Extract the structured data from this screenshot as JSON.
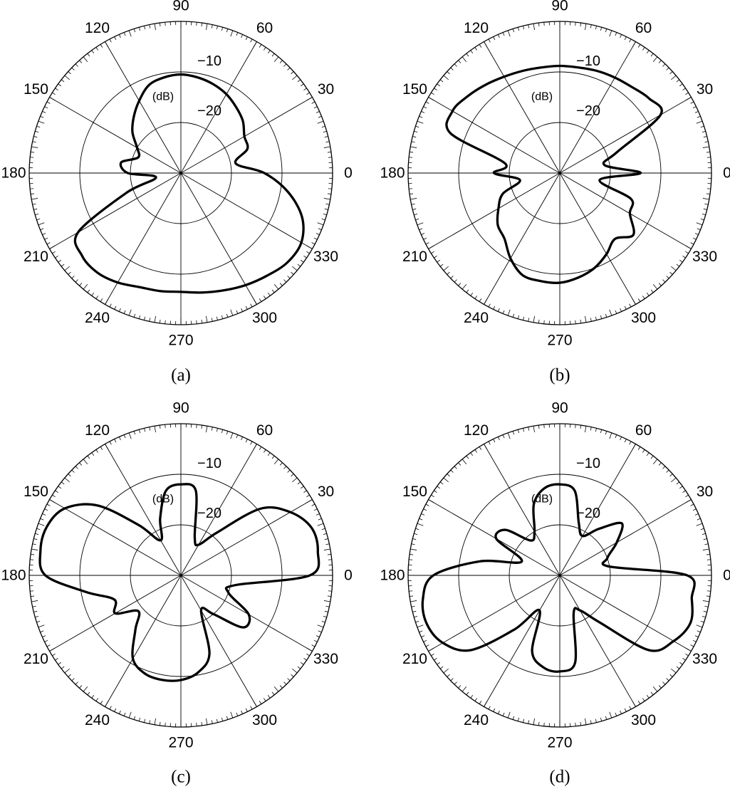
{
  "figure": {
    "angle_labels": [
      "0",
      "30",
      "60",
      "90",
      "120",
      "150",
      "180",
      "210",
      "240",
      "270",
      "300",
      "330"
    ],
    "unit_label": "(dB)",
    "db_tick_labels": [
      "−10",
      "−20"
    ]
  },
  "chart_data": [
    {
      "type": "polar-line",
      "caption": "(a)",
      "angle_unit": "degrees",
      "r_unit": "dB",
      "r_range": [
        -30,
        0
      ],
      "r_gridlines": [
        -20,
        -10,
        0
      ],
      "theta_ticks": [
        0,
        30,
        60,
        90,
        120,
        150,
        180,
        210,
        240,
        270,
        300,
        330
      ],
      "pattern": {
        "theta": [
          0,
          10,
          20,
          30,
          40,
          50,
          60,
          70,
          80,
          90,
          100,
          110,
          120,
          130,
          140,
          150,
          160,
          170,
          180,
          190,
          200,
          210,
          220,
          230,
          240,
          250,
          260,
          270,
          280,
          290,
          300,
          310,
          320,
          330,
          340,
          350
        ],
        "r": [
          -13.5,
          -19,
          -16,
          -15.5,
          -14,
          -13,
          -12,
          -11.3,
          -10.8,
          -10.5,
          -10.8,
          -11.5,
          -13.5,
          -15.5,
          -17.5,
          -20,
          -21,
          -18,
          -19.5,
          -25,
          -18.5,
          -6.5,
          -4.5,
          -4.3,
          -5,
          -6,
          -6.3,
          -6.5,
          -6,
          -5.3,
          -4.4,
          -3.5,
          -2.5,
          -2.5,
          -4.5,
          -8.5
        ]
      }
    },
    {
      "type": "polar-line",
      "caption": "(b)",
      "angle_unit": "degrees",
      "r_unit": "dB",
      "r_range": [
        -30,
        0
      ],
      "r_gridlines": [
        -20,
        -10,
        0
      ],
      "theta_ticks": [
        0,
        30,
        60,
        90,
        120,
        150,
        180,
        210,
        240,
        270,
        300,
        330
      ],
      "pattern": {
        "theta": [
          0,
          10,
          20,
          30,
          40,
          50,
          60,
          70,
          80,
          90,
          100,
          110,
          120,
          130,
          140,
          150,
          160,
          170,
          180,
          190,
          200,
          210,
          220,
          230,
          240,
          250,
          260,
          270,
          280,
          290,
          300,
          310,
          320,
          330,
          340,
          350
        ],
        "r": [
          -14,
          -21,
          -18,
          -7,
          -7,
          -7.8,
          -8.2,
          -8.5,
          -8.8,
          -8.8,
          -8.8,
          -8.5,
          -8,
          -7.2,
          -6.3,
          -5.5,
          -7,
          -19,
          -17,
          -22,
          -18,
          -16,
          -14,
          -13,
          -10.5,
          -8.5,
          -8.3,
          -8.3,
          -9,
          -10,
          -11.5,
          -13,
          -11,
          -14,
          -15,
          -22
        ]
      }
    },
    {
      "type": "polar-line",
      "caption": "(c)",
      "angle_unit": "degrees",
      "r_unit": "dB",
      "r_range": [
        -30,
        0
      ],
      "r_gridlines": [
        -20,
        -10,
        0
      ],
      "theta_ticks": [
        0,
        30,
        60,
        90,
        120,
        150,
        180,
        210,
        240,
        270,
        300,
        330
      ],
      "pattern": {
        "theta": [
          0,
          10,
          20,
          30,
          40,
          50,
          60,
          70,
          80,
          90,
          100,
          110,
          120,
          130,
          140,
          150,
          160,
          170,
          180,
          190,
          200,
          210,
          220,
          230,
          240,
          250,
          260,
          270,
          280,
          290,
          300,
          310,
          320,
          330,
          340,
          350
        ],
        "r": [
          -4.5,
          -2.5,
          -2.5,
          -5,
          -9.5,
          -19,
          -23,
          -22,
          -13,
          -12,
          -13,
          -18,
          -22,
          -17,
          -8.5,
          -3.5,
          -1.8,
          -1.8,
          -3.2,
          -11,
          -16,
          -15,
          -19,
          -16,
          -11,
          -9.3,
          -9,
          -9.3,
          -10.5,
          -13.5,
          -22,
          -20,
          -14,
          -14.5,
          -20,
          -19
        ]
      }
    },
    {
      "type": "polar-line",
      "caption": "(d)",
      "angle_unit": "degrees",
      "r_unit": "dB",
      "r_range": [
        -30,
        0
      ],
      "r_gridlines": [
        -20,
        -10,
        0
      ],
      "theta_ticks": [
        0,
        30,
        60,
        90,
        120,
        150,
        180,
        210,
        240,
        270,
        300,
        330
      ],
      "pattern": {
        "theta": [
          0,
          10,
          20,
          30,
          40,
          50,
          60,
          70,
          80,
          90,
          100,
          110,
          120,
          130,
          140,
          150,
          160,
          170,
          180,
          190,
          200,
          210,
          220,
          230,
          240,
          250,
          260,
          270,
          280,
          290,
          300,
          310,
          320,
          330,
          340,
          350
        ],
        "r": [
          -4.8,
          -20,
          -20,
          -17,
          -14,
          -18,
          -21,
          -19,
          -13,
          -12,
          -12.5,
          -15,
          -20,
          -21,
          -16,
          -15.5,
          -22,
          -14,
          -5,
          -2.5,
          -2,
          -3.3,
          -7,
          -16,
          -22,
          -14,
          -11.5,
          -11,
          -12.5,
          -22,
          -22,
          -18,
          -7,
          -4,
          -2.5,
          -3.5
        ]
      }
    }
  ]
}
